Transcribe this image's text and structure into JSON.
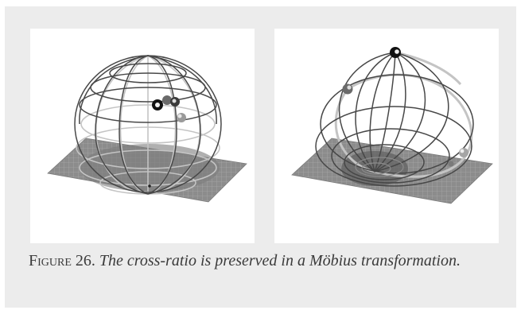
{
  "figure": {
    "label": "Figure 26.",
    "caption": "The cross-ratio is preserved in a Möbius transformation."
  },
  "colors": {
    "frame_background": "#ececec",
    "panel_background": "#ffffff",
    "plane_fill": "#8a8a8a",
    "plane_grid": "#a5a5a5",
    "wire_dark": "#4a4a4a",
    "wire_light": "#c4c4c4",
    "caption_text": "#3a3a3a"
  },
  "panels": [
    {
      "name": "sphere-before",
      "description_icon": "wireframe-sphere"
    },
    {
      "name": "sphere-after",
      "description_icon": "mobius-circle-bundle"
    }
  ]
}
